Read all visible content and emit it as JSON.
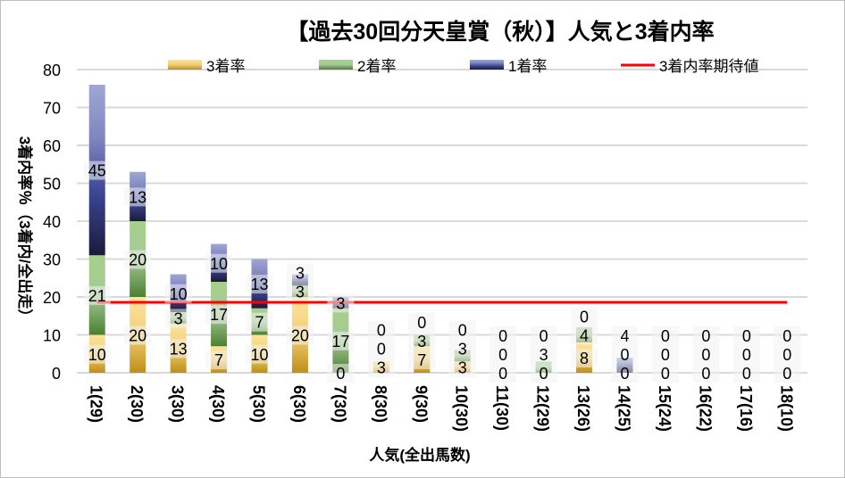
{
  "chart_data": {
    "type": "bar",
    "stacked": true,
    "title": "【過去30回分天皇賞（秋）】人気と3着内率",
    "xlabel": "人気(全出馬数)",
    "ylabel": "3着内率％（3着内/全出走）",
    "ylim": [
      0,
      80
    ],
    "yticks": [
      0,
      10,
      20,
      30,
      40,
      50,
      60,
      70,
      80
    ],
    "grid": true,
    "legend_position": "top",
    "categories": [
      "1(29)",
      "2(30)",
      "3(30)",
      "4(30)",
      "5(30)",
      "6(30)",
      "7(30)",
      "8(30)",
      "9(30)",
      "10(30)",
      "11(30)",
      "12(29)",
      "13(26)",
      "14(25)",
      "15(24)",
      "16(22)",
      "17(16)",
      "18(10)"
    ],
    "series": [
      {
        "name": "3着率",
        "color": "#e8b84a",
        "values": [
          10,
          20,
          13,
          7,
          10,
          20,
          0,
          3,
          7,
          3,
          0,
          0,
          8,
          0,
          0,
          0,
          0,
          0
        ]
      },
      {
        "name": "2着率",
        "color": "#70a850",
        "values": [
          21,
          20,
          3,
          17,
          7,
          3,
          17,
          0,
          3,
          3,
          0,
          3,
          4,
          0,
          0,
          0,
          0,
          0
        ]
      },
      {
        "name": "1着率",
        "color": "#4a5aa8",
        "values": [
          45,
          13,
          10,
          10,
          13,
          3,
          3,
          0,
          0,
          0,
          0,
          0,
          0,
          4,
          0,
          0,
          0,
          0
        ]
      }
    ],
    "reference_line": {
      "name": "3着内率期待値",
      "color": "#ff0000",
      "value": 18.6
    }
  }
}
